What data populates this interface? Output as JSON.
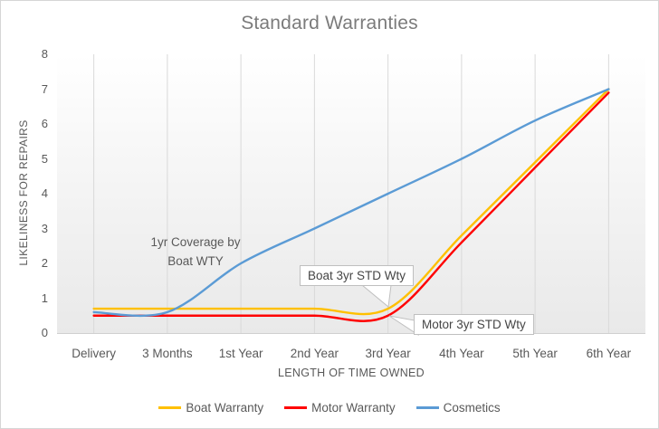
{
  "chart_data": {
    "type": "line",
    "title": "Standard Warranties",
    "xlabel": "LENGTH OF TIME OWNED",
    "ylabel": "LIKELINESS FOR REPAIRS",
    "categories": [
      "Delivery",
      "3 Months",
      "1st Year",
      "2nd Year",
      "3rd Year",
      "4th Year",
      "5th Year",
      "6th Year"
    ],
    "ylim": [
      0,
      8
    ],
    "yticks": [
      0,
      1,
      2,
      3,
      4,
      5,
      6,
      7,
      8
    ],
    "grid": "vertical-major-only",
    "legend_position": "bottom",
    "smooth_lines": true,
    "series": [
      {
        "name": "Boat Warranty",
        "color": "#FFC000",
        "values": [
          0.7,
          0.7,
          0.7,
          0.7,
          0.7,
          2.8,
          4.9,
          7.0
        ]
      },
      {
        "name": "Motor Warranty",
        "color": "#FF0000",
        "values": [
          0.5,
          0.5,
          0.5,
          0.5,
          0.5,
          2.6,
          4.75,
          6.9
        ]
      },
      {
        "name": "Cosmetics",
        "color": "#5B9BD5",
        "values": [
          0.6,
          0.6,
          2.0,
          3.0,
          4.0,
          5.0,
          6.1,
          7.0
        ]
      }
    ],
    "annotations": [
      {
        "kind": "text",
        "line1": "1yr Coverage by",
        "line2": "Boat WTY",
        "near_category": "1st Year",
        "near_value": 2.4
      },
      {
        "kind": "callout",
        "text": "Boat 3yr STD Wty",
        "target_series": "Boat Warranty",
        "target_category": "3rd Year",
        "target_value": 0.7
      },
      {
        "kind": "callout",
        "text": "Motor 3yr STD Wty",
        "target_series": "Motor Warranty",
        "target_category": "3rd Year",
        "target_value": 0.5
      }
    ],
    "style": {
      "title_color": "#7B7B7B",
      "axis_text_color": "#595959",
      "gridline_color": "#D9D9D9",
      "axis_line_color": "#D0D0D0",
      "callout_border_color": "#BFBFBF",
      "plot_gradient_top": "#FFFFFF",
      "plot_gradient_bottom": "#E9E9E9"
    }
  }
}
